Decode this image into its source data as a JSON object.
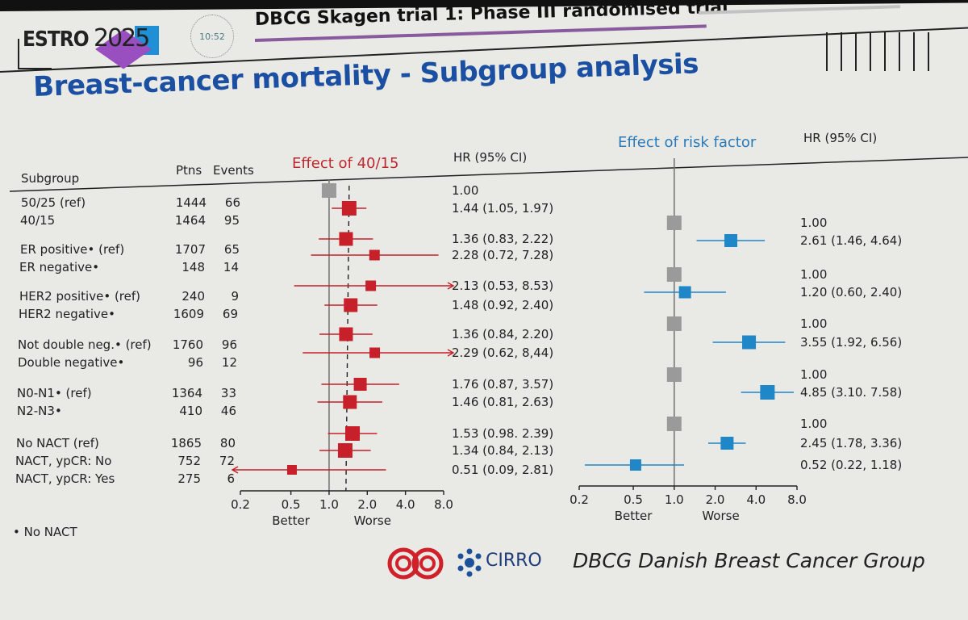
{
  "header": {
    "logo_text": "ESTRO",
    "logo_year": "2025",
    "clock": "10:52",
    "title": "DBCG Skagen trial 1: Phase III randomised trial"
  },
  "slide_title": "Breast-cancer mortality - Subgroup analysis",
  "table": {
    "col_subgroup": "Subgroup",
    "col_ptns": "Ptns",
    "col_events": "Events",
    "col_hr_left": "HR (95% CI)",
    "col_hr_right": "HR (95% CI)",
    "rows": [
      {
        "label": "50/25 (ref)",
        "ptns": "1444",
        "events": "66"
      },
      {
        "label": "40/15",
        "ptns": "1464",
        "events": "95"
      },
      {
        "label": "ER positive• (ref)",
        "ptns": "1707",
        "events": "65"
      },
      {
        "label": "ER negative•",
        "ptns": "148",
        "events": "14"
      },
      {
        "label": "HER2 positive• (ref)",
        "ptns": "240",
        "events": "9"
      },
      {
        "label": "HER2 negative•",
        "ptns": "1609",
        "events": "69"
      },
      {
        "label": "Not double neg.• (ref)",
        "ptns": "1760",
        "events": "96"
      },
      {
        "label": "Double negative•",
        "ptns": "96",
        "events": "12"
      },
      {
        "label": "N0-N1• (ref)",
        "ptns": "1364",
        "events": "33"
      },
      {
        "label": "N2-N3•",
        "ptns": "410",
        "events": "46"
      },
      {
        "label": "No NACT (ref)",
        "ptns": "1865",
        "events": "80"
      },
      {
        "label": "NACT, ypCR: No",
        "ptns": "752",
        "events": "72"
      },
      {
        "label": "NACT, ypCR: Yes",
        "ptns": "275",
        "events": "6"
      }
    ]
  },
  "footnote": "• No NACT",
  "footer": {
    "cirro": "CIRRO",
    "dbcg": "DBCG Danish Breast Cancer Group"
  },
  "chart_data": [
    {
      "type": "forest",
      "title": "Effect of 40/15",
      "scale": "log",
      "xlim": [
        0.2,
        8.0
      ],
      "xticks": [
        "0.2",
        "0.5",
        "1.0",
        "2.0",
        "4.0",
        "8.0"
      ],
      "xlabel_left": "Better",
      "xlabel_right": "Worse",
      "reference_line": 1.0,
      "overall_dashed_line": 1.44,
      "colors": {
        "marker": "#c8202a",
        "reference": "#9a9a9a"
      },
      "points": [
        {
          "hr": 1.0,
          "lo": null,
          "hi": null,
          "text": "1.00",
          "reference": true
        },
        {
          "hr": 1.44,
          "lo": 1.05,
          "hi": 1.97,
          "text": "1.44 (1.05, 1.97)"
        },
        {
          "hr": 1.36,
          "lo": 0.83,
          "hi": 2.22,
          "text": "1.36 (0.83, 2.22)"
        },
        {
          "hr": 2.28,
          "lo": 0.72,
          "hi": 7.28,
          "text": "2.28 (0.72, 7.28)"
        },
        {
          "hr": 2.13,
          "lo": 0.53,
          "hi": 8.53,
          "text": "2.13 (0.53, 8.53)",
          "arrow_right": true
        },
        {
          "hr": 1.48,
          "lo": 0.92,
          "hi": 2.4,
          "text": "1.48 (0.92, 2.40)"
        },
        {
          "hr": 1.36,
          "lo": 0.84,
          "hi": 2.2,
          "text": "1.36 (0.84, 2.20)"
        },
        {
          "hr": 2.29,
          "lo": 0.62,
          "hi": 8.44,
          "text": "2.29 (0.62, 8,44)",
          "arrow_right": true
        },
        {
          "hr": 1.76,
          "lo": 0.87,
          "hi": 3.57,
          "text": "1.76 (0.87, 3.57)"
        },
        {
          "hr": 1.46,
          "lo": 0.81,
          "hi": 2.63,
          "text": "1.46 (0.81, 2.63)"
        },
        {
          "hr": 1.53,
          "lo": 0.98,
          "hi": 2.39,
          "text": "1.53 (0.98. 2.39)"
        },
        {
          "hr": 1.34,
          "lo": 0.84,
          "hi": 2.13,
          "text": "1.34 (0.84, 2.13)"
        },
        {
          "hr": 0.51,
          "lo": 0.09,
          "hi": 2.81,
          "text": "0.51 (0.09, 2.81)",
          "arrow_left": true
        }
      ]
    },
    {
      "type": "forest",
      "title": "Effect of risk factor",
      "scale": "log",
      "xlim": [
        0.2,
        8.0
      ],
      "xticks": [
        "0.2",
        "0.5",
        "1.0",
        "2.0",
        "4.0",
        "8.0"
      ],
      "xlabel_left": "Better",
      "xlabel_right": "Worse",
      "reference_line": 1.0,
      "colors": {
        "marker": "#1f86c8",
        "reference": "#9a9a9a"
      },
      "points": [
        {
          "hr": 1.0,
          "lo": null,
          "hi": null,
          "text": "1.00",
          "reference": true
        },
        {
          "hr": 2.61,
          "lo": 1.46,
          "hi": 4.64,
          "text": "2.61 (1.46, 4.64)"
        },
        {
          "hr": 1.0,
          "lo": null,
          "hi": null,
          "text": "1.00",
          "reference": true
        },
        {
          "hr": 1.2,
          "lo": 0.6,
          "hi": 2.4,
          "text": "1.20 (0.60, 2.40)"
        },
        {
          "hr": 1.0,
          "lo": null,
          "hi": null,
          "text": "1.00",
          "reference": true
        },
        {
          "hr": 3.55,
          "lo": 1.92,
          "hi": 6.56,
          "text": "3.55 (1.92, 6.56)"
        },
        {
          "hr": 1.0,
          "lo": null,
          "hi": null,
          "text": "1.00",
          "reference": true
        },
        {
          "hr": 4.85,
          "lo": 3.1,
          "hi": 7.58,
          "text": "4.85 (3.10. 7.58)"
        },
        {
          "hr": 1.0,
          "lo": null,
          "hi": null,
          "text": "1.00",
          "reference": true
        },
        {
          "hr": 2.45,
          "lo": 1.78,
          "hi": 3.36,
          "text": "2.45 (1.78, 3.36)"
        },
        {
          "hr": 0.52,
          "lo": 0.22,
          "hi": 1.18,
          "text": "0.52 (0.22, 1.18)"
        }
      ]
    }
  ]
}
